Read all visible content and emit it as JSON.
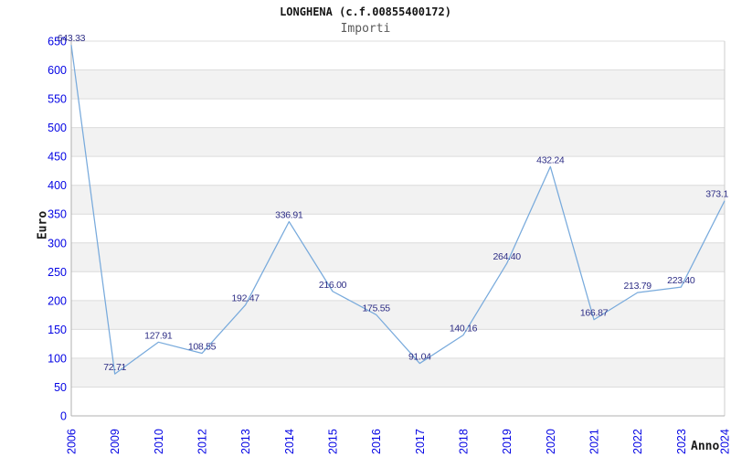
{
  "chart_data": {
    "type": "line",
    "title": "LONGHENA (c.f.00855400172)",
    "subtitle": "Importi",
    "xlabel": "Anno",
    "ylabel": "Euro",
    "categories": [
      "2006",
      "2009",
      "2010",
      "2012",
      "2013",
      "2014",
      "2015",
      "2016",
      "2017",
      "2018",
      "2019",
      "2020",
      "2021",
      "2022",
      "2023",
      "2024"
    ],
    "values": [
      643.33,
      72.71,
      127.91,
      108.55,
      192.47,
      336.91,
      216.0,
      175.55,
      91.04,
      140.16,
      264.4,
      432.24,
      166.87,
      213.79,
      223.4,
      373.1
    ],
    "point_labels": [
      "643.33",
      "72.71",
      "127.91",
      "108.55",
      "192.47",
      "336.91",
      "216.00",
      "175.55",
      "91.04",
      "140.16",
      "264.40",
      "432.24",
      "166.87",
      "213.79",
      "223.40",
      "373.1"
    ],
    "ylim": [
      0,
      650
    ],
    "ytick_step": 50,
    "grid": "horizontal gridlines with alternating gray bands",
    "legend": "none",
    "colors": {
      "line": "#78aadc",
      "tick_labels": "#0404e4",
      "point_labels": "#2d2d85",
      "band": "#f2f2f2",
      "gridline": "#dcdcdc",
      "axis": "#b0b0b0",
      "border": "#cccccc",
      "title": "#151515",
      "subtitle": "#5a5a5a"
    }
  }
}
